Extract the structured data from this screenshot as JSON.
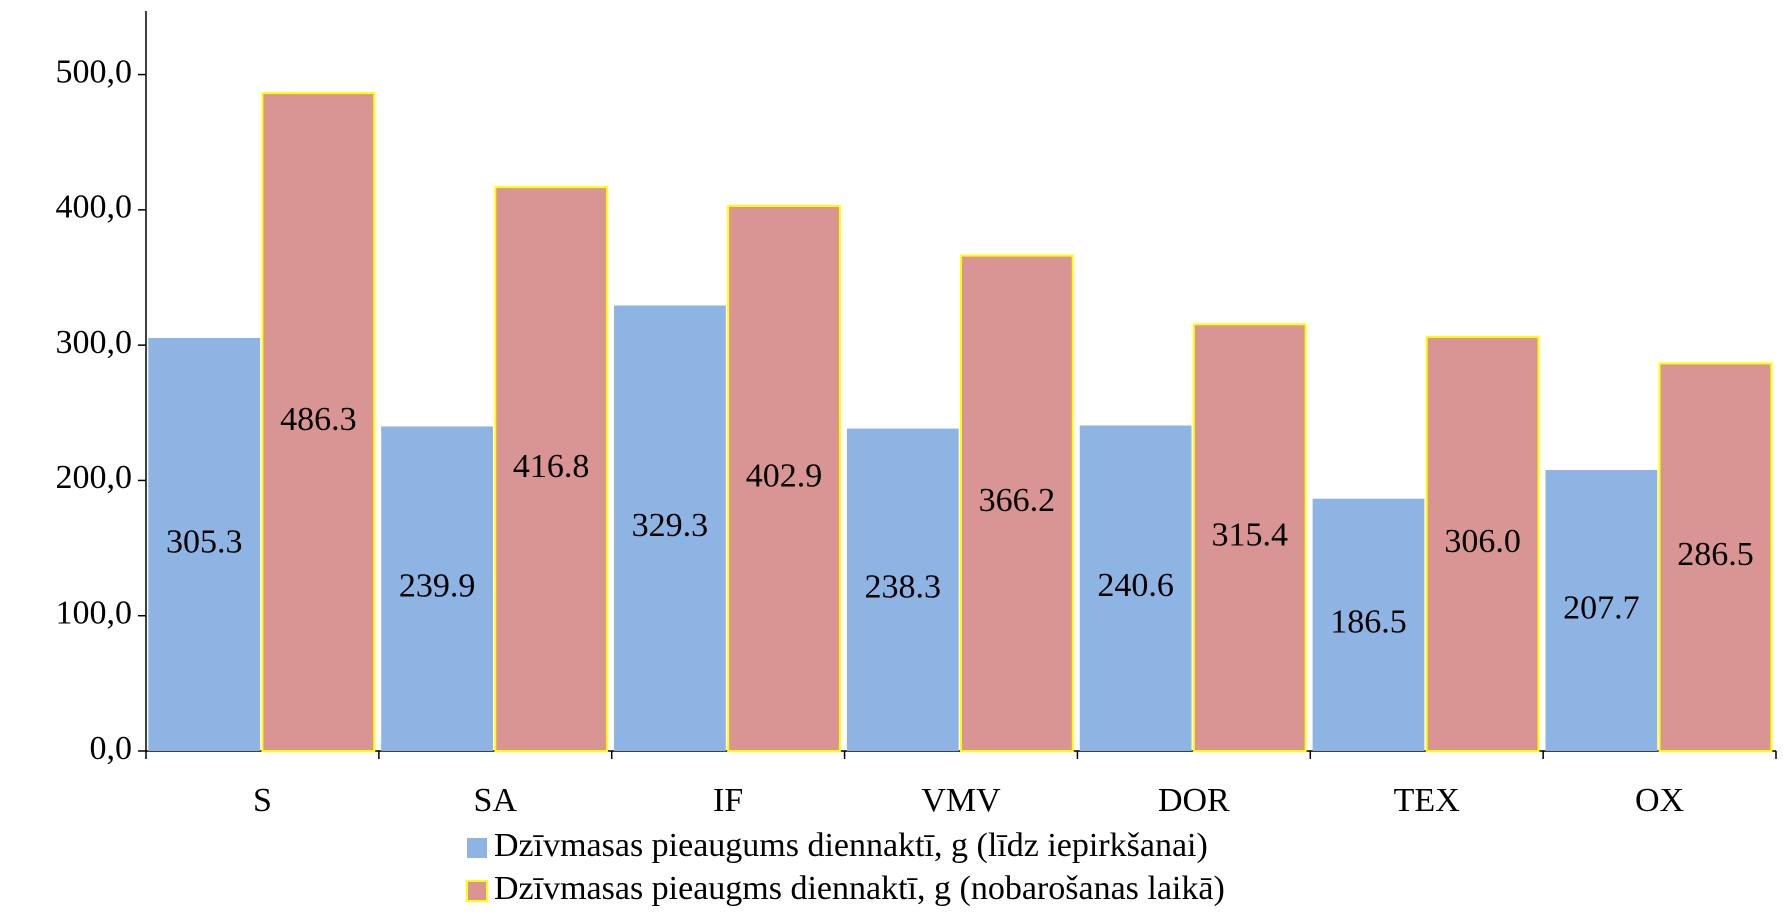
{
  "chart_data": {
    "type": "bar",
    "categories": [
      "S",
      "SA",
      "IF",
      "VMV",
      "DOR",
      "TEX",
      "OX"
    ],
    "series": [
      {
        "name": "Dzīvmasas pieaugums diennaktī, g (līdz iepirkšanai)",
        "color": "#8eb4e3",
        "values": [
          305.3,
          239.9,
          329.3,
          238.3,
          240.6,
          186.5,
          207.7
        ],
        "value_labels": [
          "305.3",
          "239.9",
          "329.3",
          "238.3",
          "240.6",
          "186.5",
          "207.7"
        ]
      },
      {
        "name": "Dzīvmasas pieaugms diennaktī, g (nobarošanas laikā)",
        "color": "#d99594",
        "values": [
          486.3,
          416.8,
          402.9,
          366.2,
          315.4,
          306.0,
          286.5
        ],
        "value_labels": [
          "486.3",
          "416.8",
          "402.9",
          "366.2",
          "315.4",
          "306.0",
          "286.5"
        ]
      }
    ],
    "ylim": [
      0,
      547
    ],
    "yticks": [
      {
        "value": 0,
        "label": "0,0"
      },
      {
        "value": 100,
        "label": "100,0"
      },
      {
        "value": 200,
        "label": "200,0"
      },
      {
        "value": 300,
        "label": "300,0"
      },
      {
        "value": 400,
        "label": "400,0"
      },
      {
        "value": 500,
        "label": "500,0"
      }
    ],
    "legend": "bottom"
  }
}
